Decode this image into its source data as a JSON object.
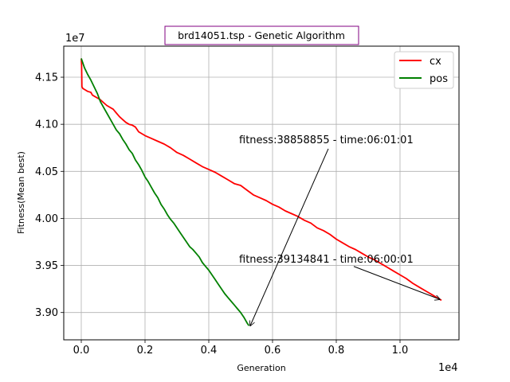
{
  "chart_data": {
    "type": "line",
    "title": "brd14051.tsp - Genetic Algorithm",
    "title_color": "#800080",
    "xlabel": "Generation",
    "ylabel": "Fitness(Mean best)",
    "x_multiplier_label": "1e4",
    "y_multiplier_label": "1e7",
    "x_scale": 10000,
    "y_scale": 10000000,
    "xlim": [
      -550,
      11850
    ],
    "ylim": [
      38710000,
      41830000
    ],
    "x_ticks": [
      0,
      2000,
      4000,
      6000,
      8000,
      10000
    ],
    "x_tick_labels": [
      "0.0",
      "0.2",
      "0.4",
      "0.6",
      "0.8",
      "1.0"
    ],
    "y_ticks": [
      39000000,
      39500000,
      40000000,
      40500000,
      41000000,
      41500000
    ],
    "y_tick_labels": [
      "3.90",
      "3.95",
      "4.00",
      "4.05",
      "4.10",
      "4.15"
    ],
    "grid": true,
    "legend_position": "top-right",
    "series": [
      {
        "name": "cx",
        "color": "#ff0000",
        "x": [
          0,
          10,
          20,
          50,
          100,
          200,
          300,
          350,
          400,
          500,
          600,
          700,
          800,
          900,
          1000,
          1100,
          1200,
          1300,
          1400,
          1500,
          1600,
          1700,
          1800,
          1900,
          2000,
          2200,
          2400,
          2600,
          2800,
          3000,
          3200,
          3400,
          3600,
          3800,
          4000,
          4200,
          4400,
          4600,
          4800,
          5000,
          5200,
          5400,
          5600,
          5800,
          6000,
          6200,
          6400,
          6600,
          6800,
          7000,
          7200,
          7400,
          7600,
          7800,
          8000,
          8200,
          8400,
          8600,
          8800,
          9000,
          9200,
          9400,
          9600,
          9800,
          10000,
          10200,
          10400,
          10600,
          10800,
          11000,
          11200,
          11300
        ],
        "y": [
          41700000,
          41620000,
          41400000,
          41380000,
          41370000,
          41350000,
          41340000,
          41310000,
          41300000,
          41280000,
          41260000,
          41230000,
          41200000,
          41180000,
          41160000,
          41120000,
          41080000,
          41050000,
          41020000,
          41000000,
          40990000,
          40970000,
          40920000,
          40900000,
          40880000,
          40850000,
          40820000,
          40790000,
          40750000,
          40700000,
          40670000,
          40630000,
          40590000,
          40550000,
          40520000,
          40490000,
          40450000,
          40410000,
          40370000,
          40350000,
          40300000,
          40250000,
          40220000,
          40190000,
          40150000,
          40120000,
          40080000,
          40050000,
          40020000,
          39980000,
          39950000,
          39900000,
          39870000,
          39830000,
          39780000,
          39740000,
          39700000,
          39670000,
          39630000,
          39590000,
          39560000,
          39520000,
          39480000,
          39440000,
          39400000,
          39360000,
          39310000,
          39270000,
          39230000,
          39190000,
          39150000,
          39130000
        ]
      },
      {
        "name": "pos",
        "color": "#008000",
        "x": [
          0,
          100,
          200,
          300,
          400,
          500,
          600,
          700,
          800,
          900,
          1000,
          1100,
          1200,
          1300,
          1400,
          1500,
          1600,
          1700,
          1800,
          1900,
          2000,
          2100,
          2200,
          2300,
          2400,
          2500,
          2600,
          2700,
          2800,
          2900,
          3000,
          3100,
          3200,
          3300,
          3400,
          3500,
          3600,
          3700,
          3800,
          3900,
          4000,
          4100,
          4200,
          4300,
          4400,
          4500,
          4600,
          4700,
          4800,
          4900,
          5000,
          5100,
          5200,
          5260
        ],
        "y": [
          41700000,
          41600000,
          41530000,
          41470000,
          41400000,
          41330000,
          41240000,
          41180000,
          41120000,
          41060000,
          41000000,
          40940000,
          40900000,
          40840000,
          40790000,
          40730000,
          40690000,
          40620000,
          40570000,
          40510000,
          40440000,
          40390000,
          40330000,
          40270000,
          40220000,
          40150000,
          40100000,
          40040000,
          39990000,
          39950000,
          39900000,
          39850000,
          39800000,
          39750000,
          39700000,
          39670000,
          39630000,
          39590000,
          39530000,
          39490000,
          39450000,
          39400000,
          39350000,
          39300000,
          39250000,
          39200000,
          39160000,
          39120000,
          39080000,
          39040000,
          39000000,
          38950000,
          38890000,
          38860000
        ]
      }
    ],
    "annotations": [
      {
        "text": "fitness:38858855 - time:06:01:01",
        "text_x": 4950,
        "text_y": 40800000,
        "point_x": 5300,
        "point_y": 38860000,
        "arrow_from_x": 7750,
        "arrow_from_y": 40740000
      },
      {
        "text": "fitness:39134841 - time:06:00:01",
        "text_x": 4950,
        "text_y": 39530000,
        "point_x": 11250,
        "point_y": 39140000,
        "arrow_from_x": 8550,
        "arrow_from_y": 39490000
      }
    ]
  }
}
